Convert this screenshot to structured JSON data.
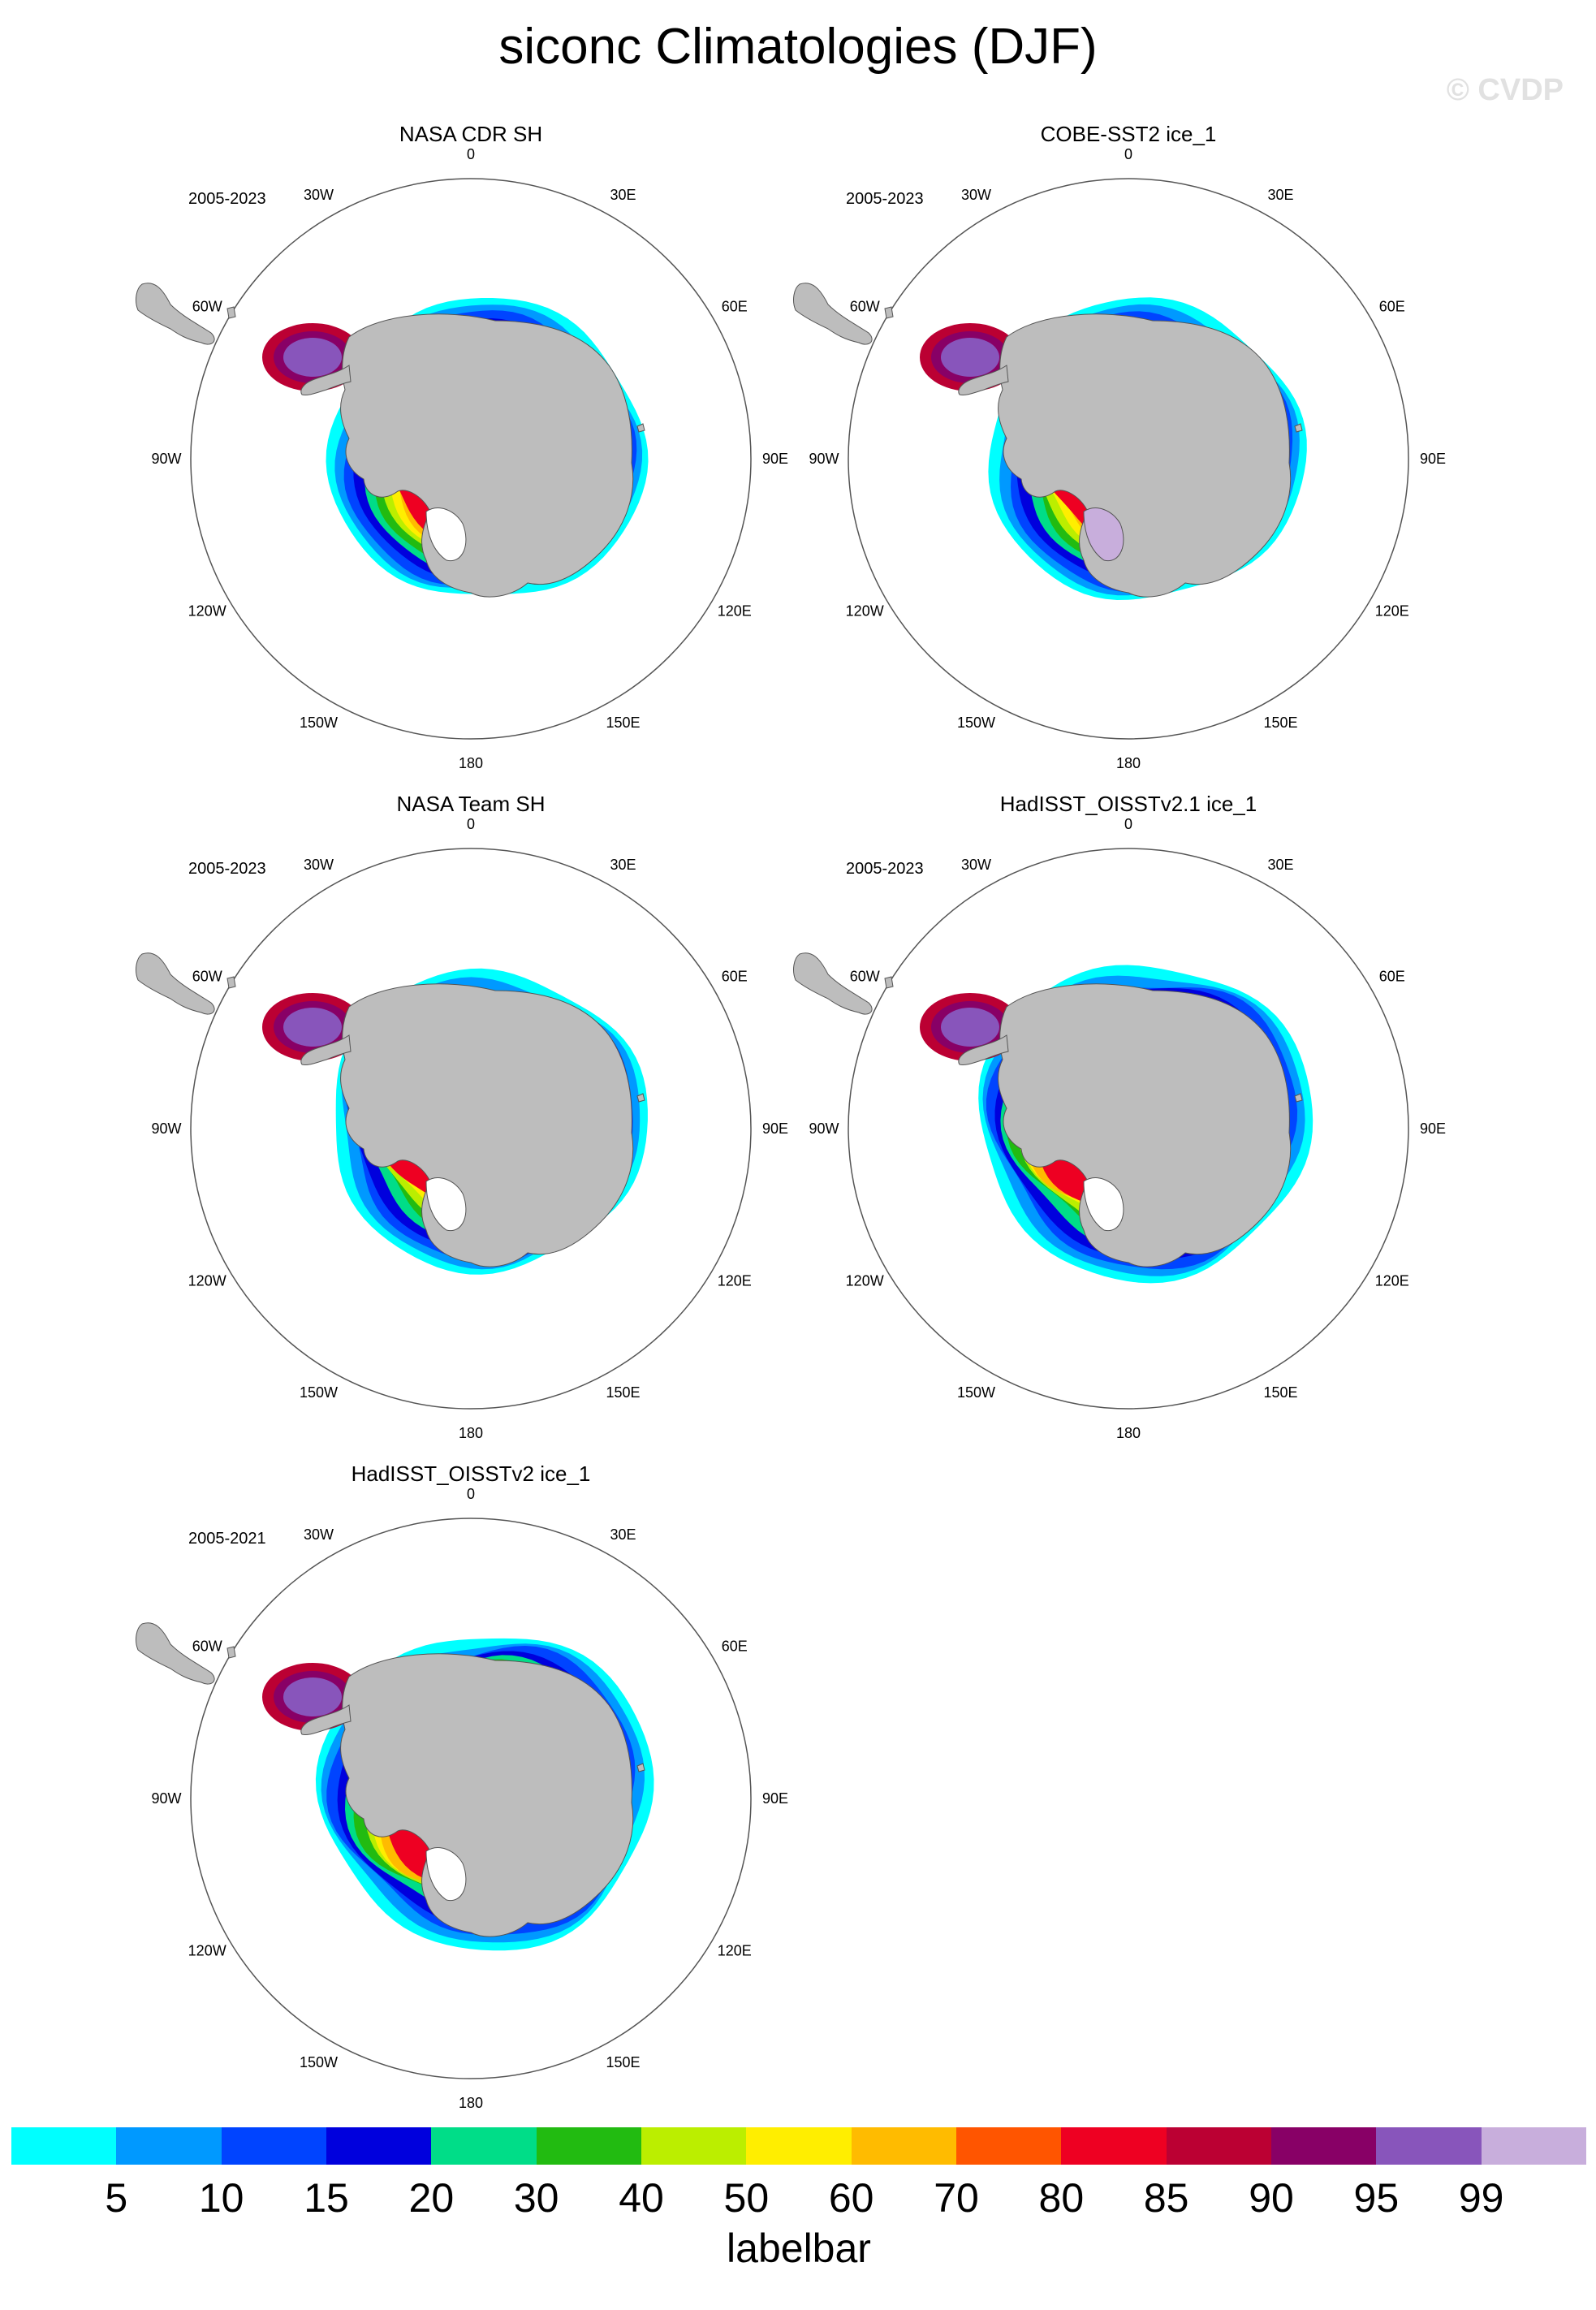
{
  "title": "siconc Climatologies (DJF)",
  "watermark": "© CVDP",
  "panels": [
    {
      "title": "NASA CDR SH",
      "period": "2005-2023",
      "variant": "cdr"
    },
    {
      "title": "COBE-SST2 ice_1",
      "period": "2005-2023",
      "variant": "cobe"
    },
    {
      "title": "NASA Team SH",
      "period": "2005-2023",
      "variant": "team"
    },
    {
      "title": "HadISST_OISSTv2.1 ice_1",
      "period": "2005-2023",
      "variant": "had21"
    },
    {
      "title": "HadISST_OISSTv2 ice_1",
      "period": "2005-2021",
      "variant": "had2"
    }
  ],
  "lon_labels": [
    "0",
    "30E",
    "60E",
    "90E",
    "120E",
    "150E",
    "180",
    "150W",
    "120W",
    "90W",
    "60W",
    "30W"
  ],
  "labelbar": {
    "caption": "labelbar",
    "ticks": [
      "5",
      "10",
      "15",
      "20",
      "30",
      "40",
      "50",
      "60",
      "70",
      "80",
      "85",
      "90",
      "95",
      "99"
    ],
    "colors": [
      "#00ffff",
      "#0099ff",
      "#0044ff",
      "#0000dd",
      "#00dd88",
      "#22bb11",
      "#bbee00",
      "#ffee00",
      "#ffbb00",
      "#ff5500",
      "#ee0022",
      "#bb0033",
      "#880066",
      "#8855bb",
      "#c8aedc"
    ]
  }
}
